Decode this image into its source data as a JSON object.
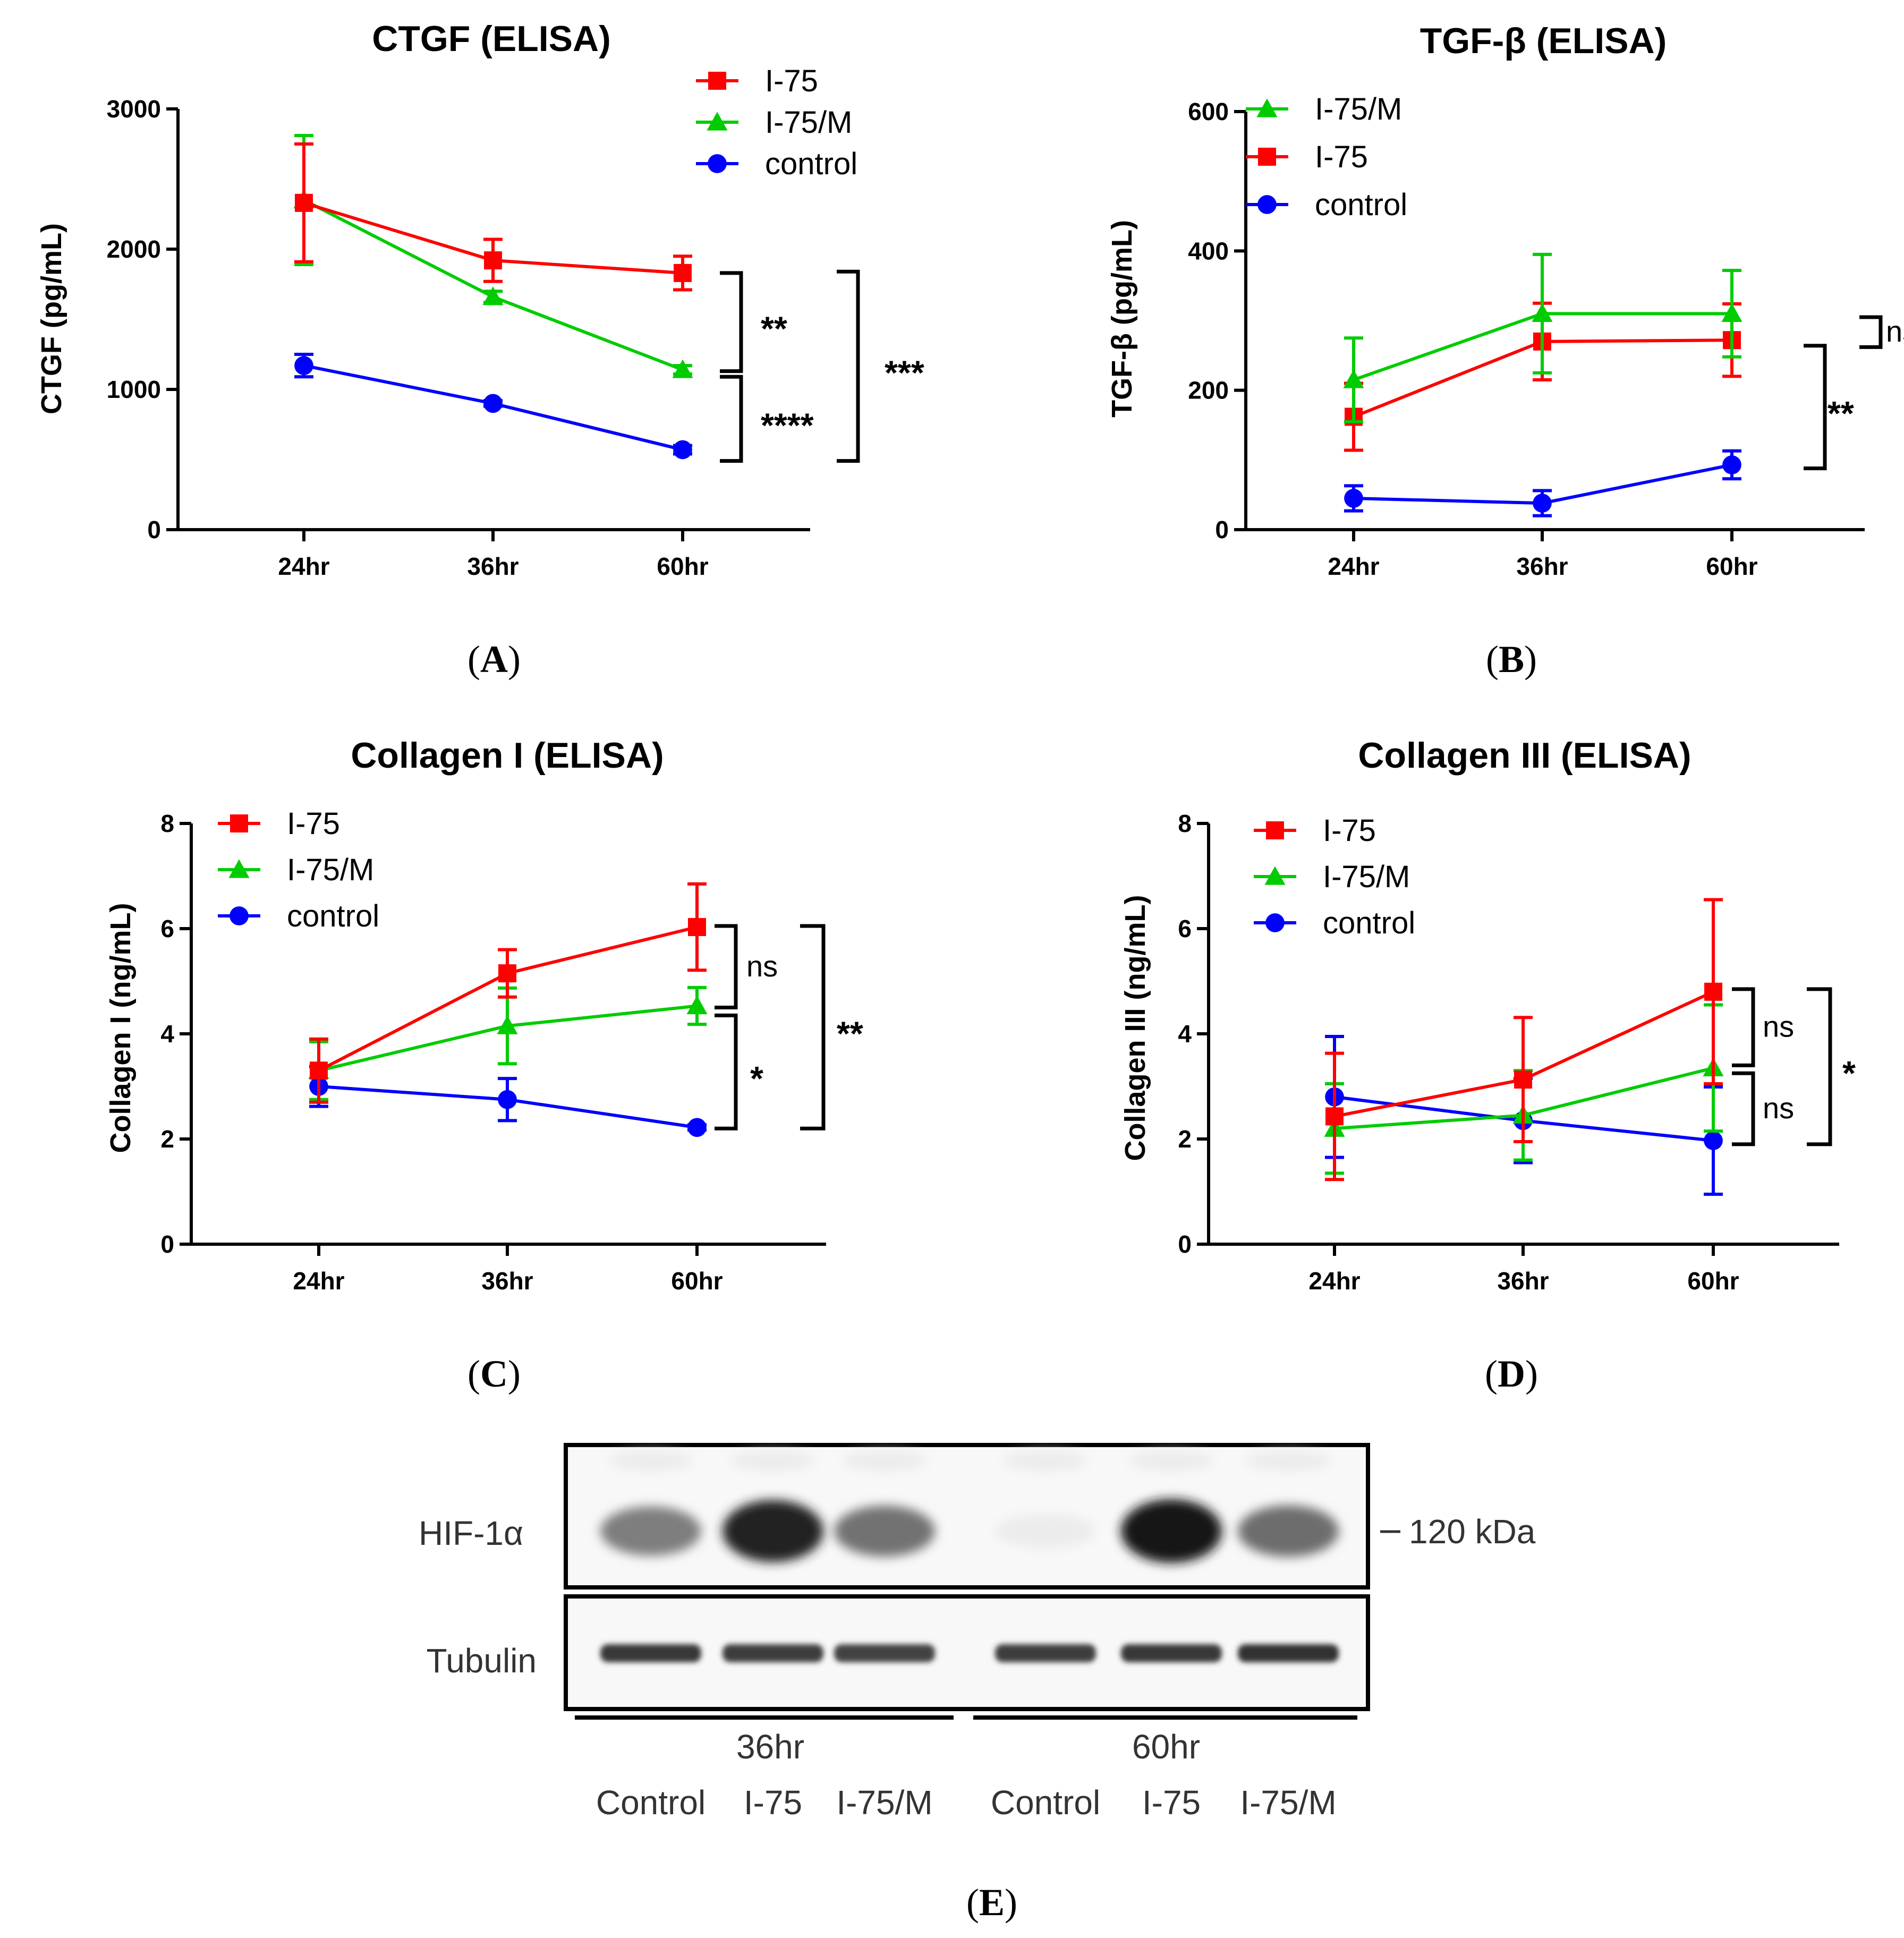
{
  "chart_data": [
    {
      "id": "A",
      "type": "line",
      "title": "CTGF (ELISA)",
      "xlabel": "",
      "ylabel": "CTGF (pg/mL)",
      "categories": [
        "24hr",
        "36hr",
        "60hr"
      ],
      "ylim": [
        0,
        3000
      ],
      "yticks": [
        "0",
        "1000",
        "2000",
        "3000"
      ],
      "legend": [
        "I-75",
        "I-75/M",
        "control"
      ],
      "series": [
        {
          "name": "I-75",
          "color": "#ff0000",
          "marker": "square",
          "values": [
            2330,
            1920,
            1830
          ],
          "errors": [
            420,
            150,
            120
          ]
        },
        {
          "name": "I-75/M",
          "color": "#00cc00",
          "marker": "triangle",
          "values": [
            2350,
            1660,
            1140
          ],
          "errors": [
            460,
            40,
            30
          ]
        },
        {
          "name": "control",
          "color": "#0000ff",
          "marker": "circle",
          "values": [
            1170,
            900,
            570
          ],
          "errors": [
            80,
            20,
            30
          ]
        }
      ],
      "significance": [
        {
          "label": "**",
          "from": 1830,
          "to": 1130
        },
        {
          "label": "****",
          "from": 1090,
          "to": 490
        },
        {
          "label": "***",
          "from": 1840,
          "to": 490
        }
      ],
      "panel_label": "A"
    },
    {
      "id": "B",
      "type": "line",
      "title": "TGF-β (ELISA)",
      "xlabel": "",
      "ylabel": "TGF-β (pg/mL)",
      "categories": [
        "24hr",
        "36hr",
        "60hr"
      ],
      "ylim": [
        0,
        600
      ],
      "yticks": [
        "0",
        "200",
        "400",
        "600"
      ],
      "legend": [
        "I-75/M",
        "I-75",
        "control"
      ],
      "series": [
        {
          "name": "I-75/M",
          "color": "#00cc00",
          "marker": "triangle",
          "values": [
            215,
            310,
            310
          ],
          "errors": [
            60,
            85,
            62
          ]
        },
        {
          "name": "I-75",
          "color": "#ff0000",
          "marker": "square",
          "values": [
            162,
            270,
            272
          ],
          "errors": [
            48,
            55,
            52
          ]
        },
        {
          "name": "control",
          "color": "#0000ff",
          "marker": "circle",
          "values": [
            45,
            38,
            93
          ],
          "errors": [
            18,
            18,
            20
          ]
        }
      ],
      "significance": [
        {
          "label": "ns",
          "from": 305,
          "to": 262
        },
        {
          "label": "**",
          "from": 264,
          "to": 88
        }
      ],
      "panel_label": "B"
    },
    {
      "id": "C",
      "type": "line",
      "title": "Collagen I (ELISA)",
      "xlabel": "",
      "ylabel": "Collagen I (ng/mL)",
      "categories": [
        "24hr",
        "36hr",
        "60hr"
      ],
      "ylim": [
        0,
        8
      ],
      "yticks": [
        "0",
        "2",
        "4",
        "6",
        "8"
      ],
      "legend": [
        "I-75",
        "I-75/M",
        "control"
      ],
      "series": [
        {
          "name": "I-75",
          "color": "#ff0000",
          "marker": "square",
          "values": [
            3.3,
            5.15,
            6.03
          ],
          "errors": [
            0.6,
            0.45,
            0.82
          ]
        },
        {
          "name": "I-75/M",
          "color": "#00cc00",
          "marker": "triangle",
          "values": [
            3.3,
            4.15,
            4.53
          ],
          "errors": [
            0.55,
            0.72,
            0.35
          ]
        },
        {
          "name": "control",
          "color": "#0000ff",
          "marker": "circle",
          "values": [
            3.0,
            2.75,
            2.22
          ],
          "errors": [
            0.38,
            0.4,
            0.05
          ]
        }
      ],
      "significance": [
        {
          "label": "ns",
          "from": 6.05,
          "to": 4.5
        },
        {
          "label": "*",
          "from": 4.35,
          "to": 2.2
        },
        {
          "label": "**",
          "from": 6.05,
          "to": 2.2
        }
      ],
      "panel_label": "C"
    },
    {
      "id": "D",
      "type": "line",
      "title": "Collagen III (ELISA)",
      "xlabel": "",
      "ylabel": "Collagen III (ng/mL)",
      "categories": [
        "24hr",
        "36hr",
        "60hr"
      ],
      "ylim": [
        0,
        8
      ],
      "yticks": [
        "0",
        "2",
        "4",
        "6",
        "8"
      ],
      "legend": [
        "I-75",
        "I-75/M",
        "control"
      ],
      "series": [
        {
          "name": "I-75",
          "color": "#ff0000",
          "marker": "square",
          "values": [
            2.43,
            3.13,
            4.8
          ],
          "errors": [
            1.2,
            1.18,
            1.75
          ]
        },
        {
          "name": "I-75/M",
          "color": "#00cc00",
          "marker": "triangle",
          "values": [
            2.2,
            2.45,
            3.35
          ],
          "errors": [
            0.85,
            0.85,
            1.2
          ]
        },
        {
          "name": "control",
          "color": "#0000ff",
          "marker": "circle",
          "values": [
            2.8,
            2.35,
            1.97
          ],
          "errors": [
            1.15,
            0.8,
            1.02
          ]
        }
      ],
      "significance": [
        {
          "label": "ns",
          "from": 4.85,
          "to": 3.4
        },
        {
          "label": "ns",
          "from": 3.25,
          "to": 1.9
        },
        {
          "label": "*",
          "from": 4.85,
          "to": 1.9
        }
      ],
      "panel_label": "D"
    }
  ],
  "blot": {
    "row_labels": [
      "HIF-1α",
      "Tubulin"
    ],
    "marker": "120 kDa",
    "time_groups": [
      "36hr",
      "60hr"
    ],
    "lanes": [
      "Control",
      "I-75",
      "I-75/M",
      "Control",
      "I-75",
      "I-75/M"
    ],
    "hif_intensity": [
      0.55,
      0.95,
      0.6,
      0.08,
      1.0,
      0.62
    ],
    "tubulin_intensity": [
      0.85,
      0.82,
      0.8,
      0.82,
      0.85,
      0.88
    ],
    "panel_label": "E"
  }
}
